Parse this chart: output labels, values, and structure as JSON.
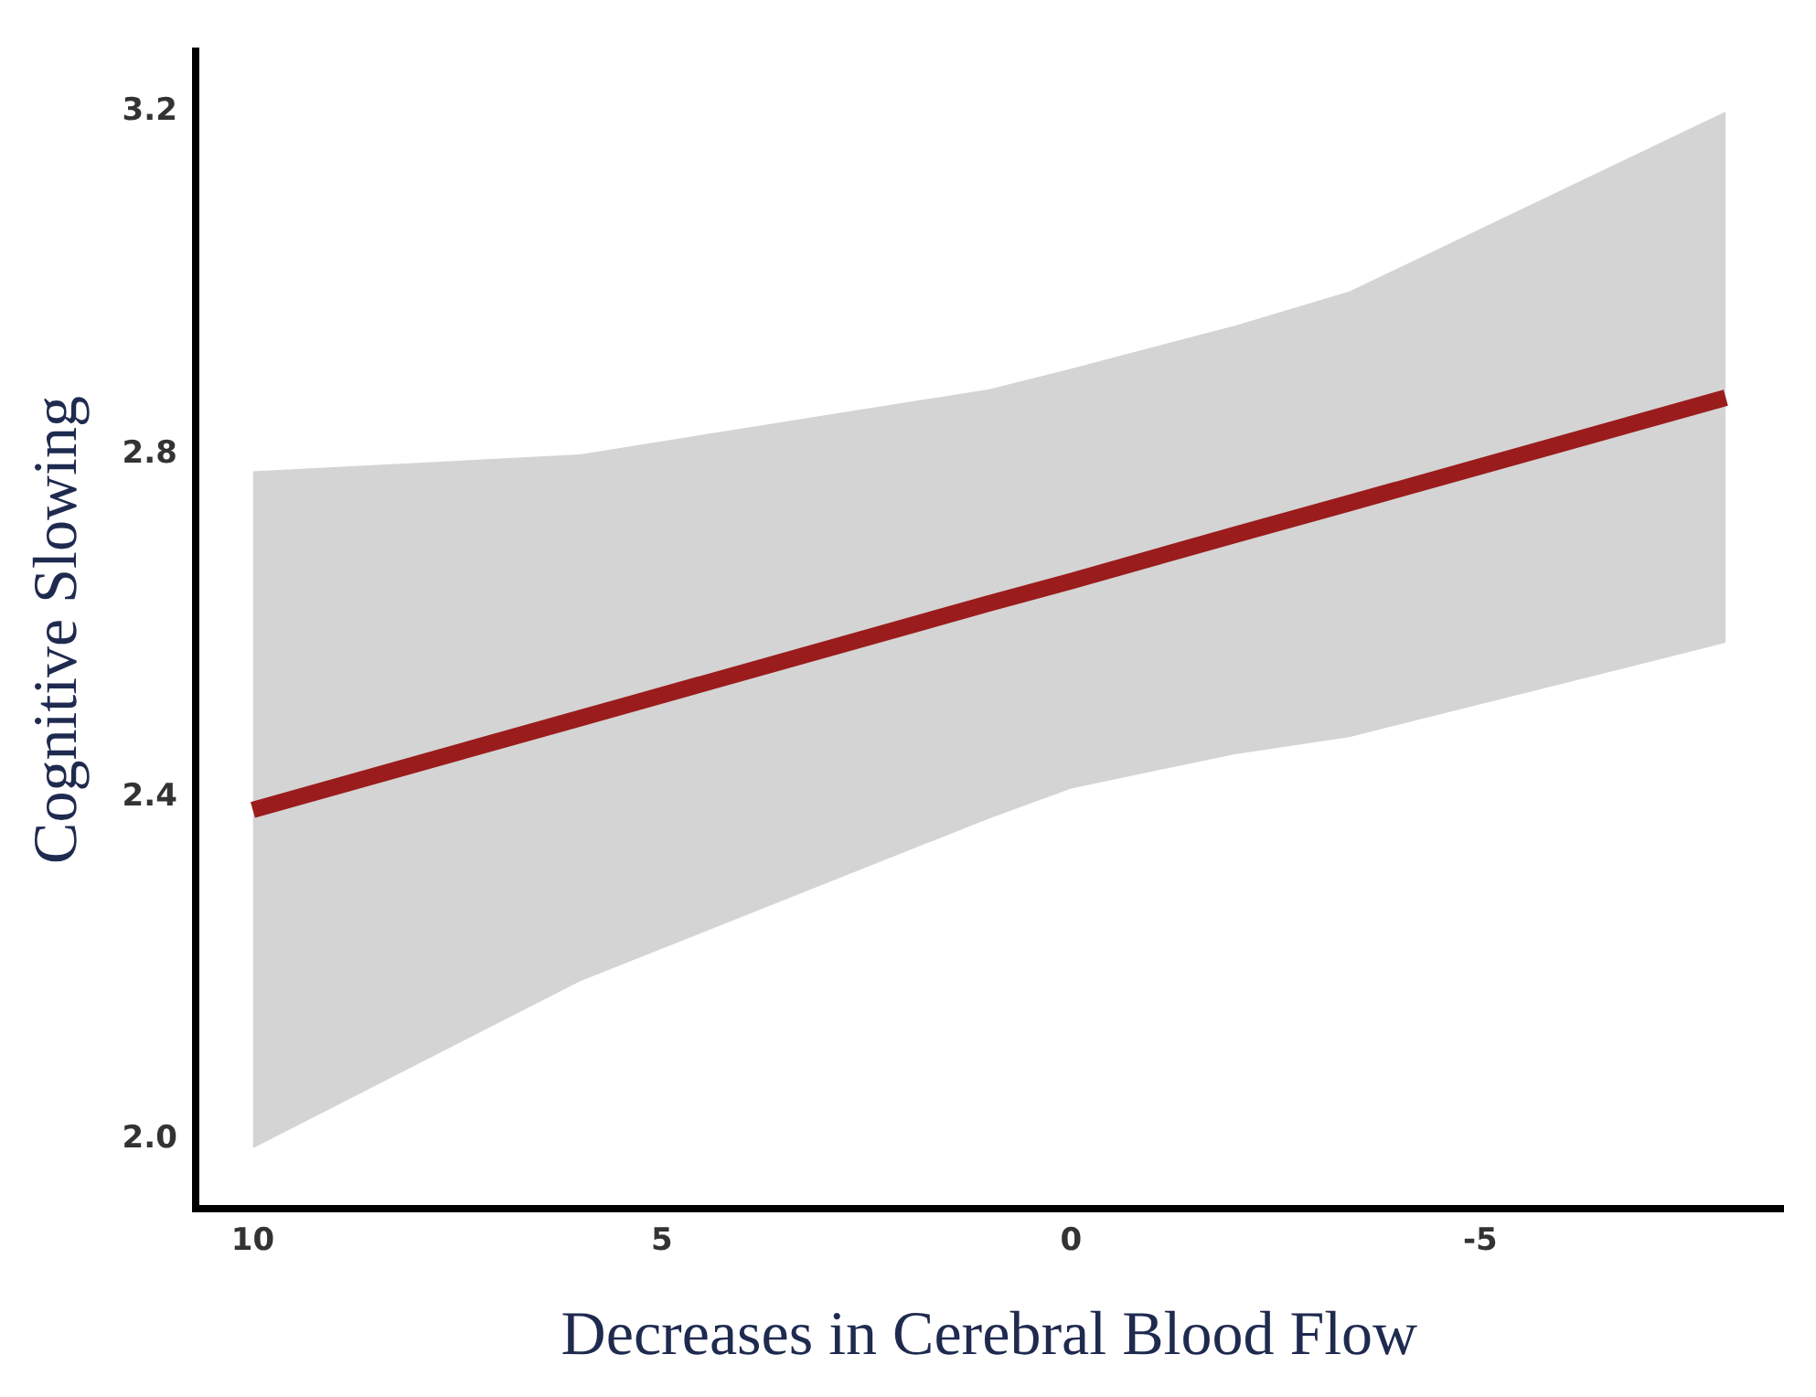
{
  "chart_data": {
    "type": "line",
    "xlabel": "Decreases in Cerebral Blood Flow",
    "ylabel": "Cognitive Slowing",
    "x": [
      10,
      6,
      1,
      0,
      -2,
      -3.4,
      -8
    ],
    "series": [
      {
        "color": "#9b1c1c",
        "values": [
          2.385,
          2.492,
          2.626,
          2.652,
          2.706,
          2.743,
          2.866
        ],
        "lower": [
          1.99,
          2.185,
          2.375,
          2.41,
          2.45,
          2.47,
          2.58
        ],
        "upper": [
          2.78,
          2.8,
          2.876,
          2.9,
          2.95,
          2.99,
          3.2
        ]
      }
    ],
    "xlim": [
      10.7,
      -8.7
    ],
    "ylim": [
      1.92,
      3.27
    ],
    "xticks": [
      10,
      5,
      0,
      -5
    ],
    "yticks": [
      {
        "value": 2,
        "label": "2.0"
      },
      2.4,
      2.8,
      3.2
    ],
    "grid": false
  }
}
